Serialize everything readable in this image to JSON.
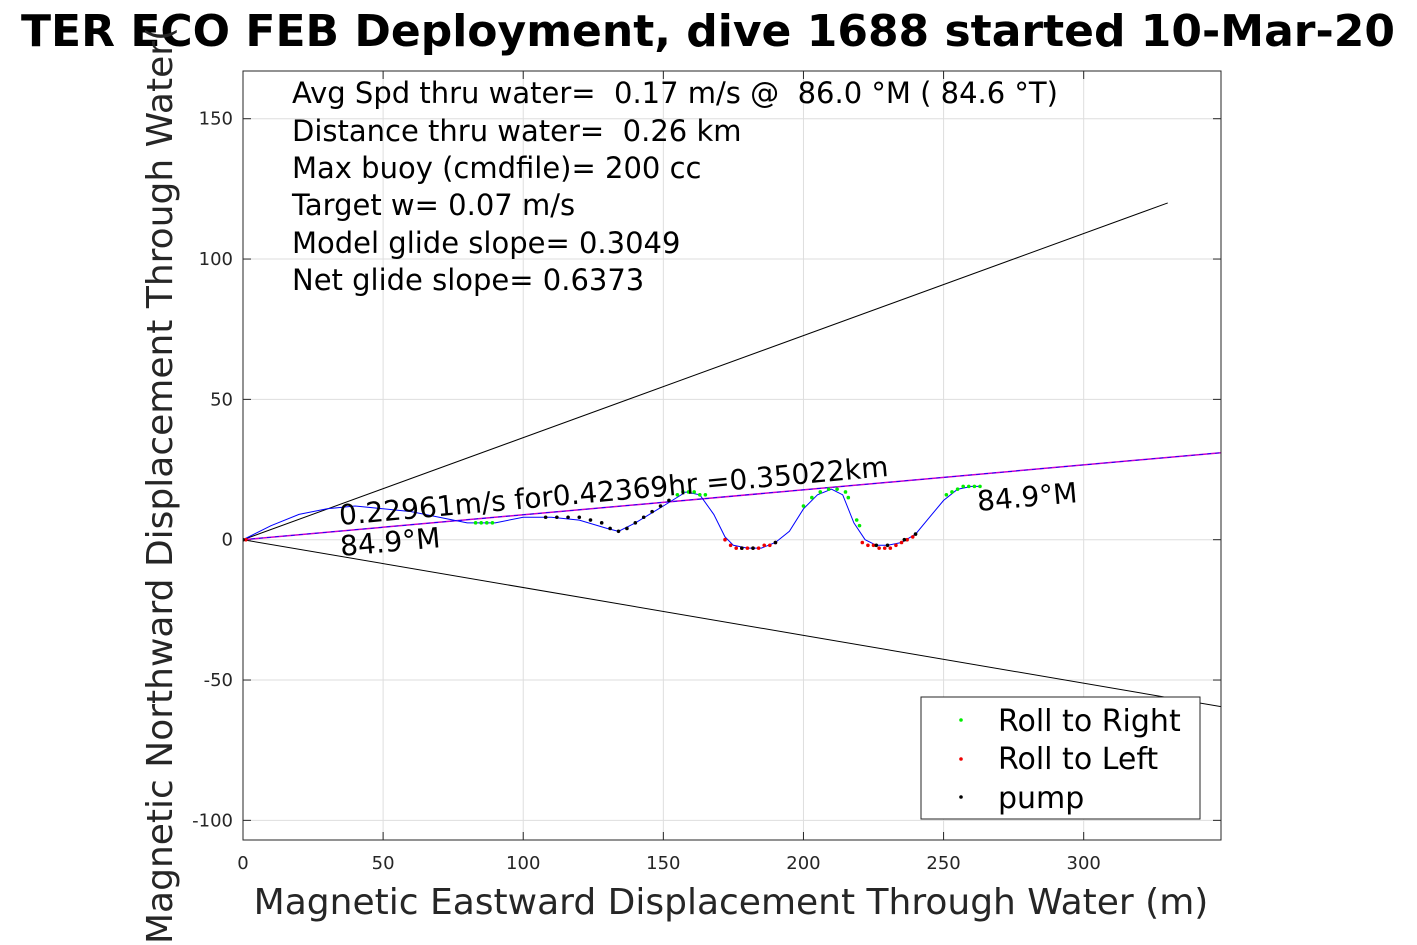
{
  "chart_data": {
    "type": "scatter",
    "title": "TER ECO FEB Deployment, dive 1688 started 10-Mar-20",
    "xlabel": "Magnetic Eastward Displacement Through Water (m)",
    "ylabel": "Magnetic Northward Displacement Through Water(",
    "xlim": [
      0,
      349
    ],
    "ylim": [
      -107,
      167
    ],
    "xticks": [
      0,
      50,
      100,
      150,
      200,
      250,
      300
    ],
    "yticks": [
      -100,
      -50,
      0,
      50,
      100,
      150
    ],
    "grid": true,
    "info_lines": [
      "Avg Spd thru water=  0.17 m/s @  86.0 °M ( 84.6 °T)",
      "Distance thru water=  0.26 km",
      "Max buoy (cmdfile)= 200 cc",
      "Target w= 0.07 m/s",
      "Model glide slope= 0.3049",
      "Net glide slope= 0.6373"
    ],
    "annotations": {
      "speed_label": "0.22961m/s for0.42369hr =0.35022km",
      "heading_start": "84.9°M",
      "heading_end": "84.9°M"
    },
    "envelope_lines": [
      {
        "name": "upper",
        "x": [
          0,
          330
        ],
        "y": [
          0,
          120
        ]
      },
      {
        "name": "lower",
        "x": [
          0,
          352
        ],
        "y": [
          0,
          -60
        ]
      }
    ],
    "net_line": {
      "x": [
        0,
        349
      ],
      "y": [
        0,
        31
      ],
      "color": "#cc00cc",
      "dash_color": "#0000ff"
    },
    "track": {
      "color": "#0000ff",
      "x": [
        0,
        10,
        20,
        30,
        40,
        50,
        60,
        70,
        80,
        85,
        90,
        100,
        110,
        120,
        130,
        134,
        140,
        150,
        158,
        163,
        168,
        172,
        175,
        180,
        185,
        190,
        195,
        200,
        205,
        210,
        214,
        218,
        222,
        226,
        230,
        235,
        240,
        245,
        250,
        255,
        260,
        263
      ],
      "y": [
        0,
        5,
        9,
        11,
        12,
        11,
        10,
        8,
        6,
        6,
        6,
        8,
        8,
        7,
        4,
        3,
        6,
        12,
        17,
        16,
        9,
        1,
        -2,
        -3,
        -3,
        -1,
        3,
        11,
        16,
        18,
        16,
        6,
        0,
        -2,
        -2,
        -1,
        2,
        8,
        14,
        18,
        19,
        19
      ]
    },
    "series": [
      {
        "name": "Roll to Right",
        "color": "#00ee00",
        "x": [
          83,
          85,
          87,
          89,
          155,
          157,
          159,
          161,
          163,
          165,
          200,
          203,
          206,
          209,
          212,
          215,
          216,
          219,
          220,
          251,
          253,
          255,
          257,
          259,
          261,
          263
        ],
        "y": [
          6,
          6,
          6,
          6,
          16,
          17,
          17,
          17,
          16,
          16,
          12,
          15,
          17,
          18,
          18,
          17,
          15,
          7,
          5,
          16,
          17,
          18,
          19,
          19,
          19,
          19
        ]
      },
      {
        "name": "Roll to Left",
        "color": "#ee0000",
        "x": [
          1,
          172,
          174,
          176,
          178,
          180,
          182,
          184,
          186,
          188,
          190,
          221,
          223,
          225,
          227,
          229,
          231,
          233,
          235,
          237,
          239
        ],
        "y": [
          0,
          0,
          -2,
          -3,
          -3,
          -3,
          -3,
          -3,
          -2,
          -2,
          -1,
          -1,
          -2,
          -2,
          -3,
          -3,
          -3,
          -2,
          -1,
          0,
          1
        ]
      },
      {
        "name": "pump",
        "color": "#000000",
        "x": [
          0,
          108,
          112,
          116,
          120,
          124,
          128,
          131,
          134,
          137,
          140,
          143,
          146,
          149,
          152,
          178,
          182,
          190,
          226,
          230,
          236,
          240
        ],
        "y": [
          0,
          8,
          8,
          8,
          8,
          7,
          6,
          4,
          3,
          4,
          6,
          8,
          10,
          12,
          14,
          -3,
          -3,
          -1,
          -2,
          -2,
          0,
          2
        ]
      }
    ],
    "legend_placement": "bottom-right"
  }
}
